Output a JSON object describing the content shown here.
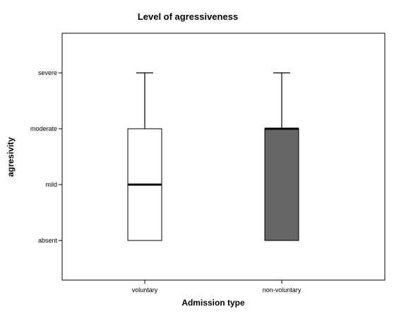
{
  "chart_data": {
    "type": "boxplot",
    "title": "Level of agressiveness",
    "xlabel": "Admission type",
    "ylabel": "agresivity",
    "y_categories": [
      "absent",
      "mild",
      "moderate",
      "severe"
    ],
    "categories": [
      "voluntary",
      "non-voluntary"
    ],
    "boxes": [
      {
        "category": "voluntary",
        "min": "absent",
        "q1": "absent",
        "median": "mild",
        "q3": "moderate",
        "max": "severe",
        "fill": "#ffffff"
      },
      {
        "category": "non-voluntary",
        "min": "absent",
        "q1": "absent",
        "median": "moderate",
        "q3": "moderate",
        "max": "severe",
        "fill": "#666666"
      }
    ],
    "grid": false,
    "legend": "none"
  }
}
